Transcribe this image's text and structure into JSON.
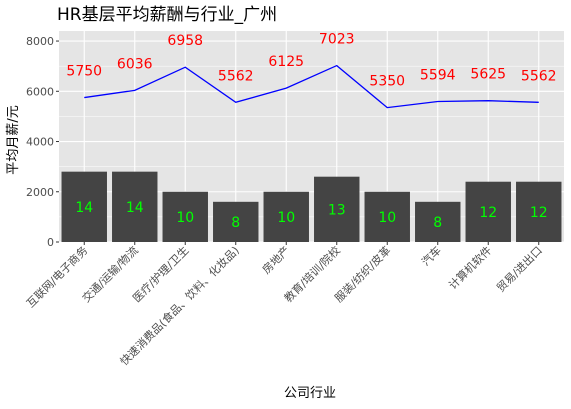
{
  "chart_data": {
    "type": "bar+line",
    "title": "HR基层平均薪酬与行业_广州",
    "xlabel": "公司行业",
    "ylabel": "平均月薪/元",
    "ylim": [
      0,
      8400
    ],
    "yticks": [
      0,
      2000,
      4000,
      6000,
      8000
    ],
    "grid": true,
    "categories": [
      "互联网/电子商务",
      "交通/运输/物流",
      "医疗/护理/卫生",
      "快速消费品(食品、饮料、化妆品)",
      "房地产",
      "教育/培训/院校",
      "服装/纺织/皮革",
      "汽车",
      "计算机软件",
      "贸易/进出口"
    ],
    "series": [
      {
        "type": "line",
        "values": [
          5750,
          6036,
          6958,
          5562,
          6125,
          7023,
          5350,
          5594,
          5625,
          5562
        ]
      },
      {
        "type": "bar",
        "values": [
          2800,
          2800,
          2000,
          1600,
          2000,
          2600,
          2000,
          1600,
          2400,
          2400
        ],
        "labels": [
          14,
          14,
          10,
          8,
          10,
          13,
          10,
          8,
          12,
          12
        ]
      }
    ],
    "colors": {
      "panel": "#e5e5e5",
      "grid": "#ffffff",
      "bar": "#444444",
      "line": "#0000ff",
      "line_label": "#ff0000",
      "bar_label": "#00ff00"
    }
  }
}
